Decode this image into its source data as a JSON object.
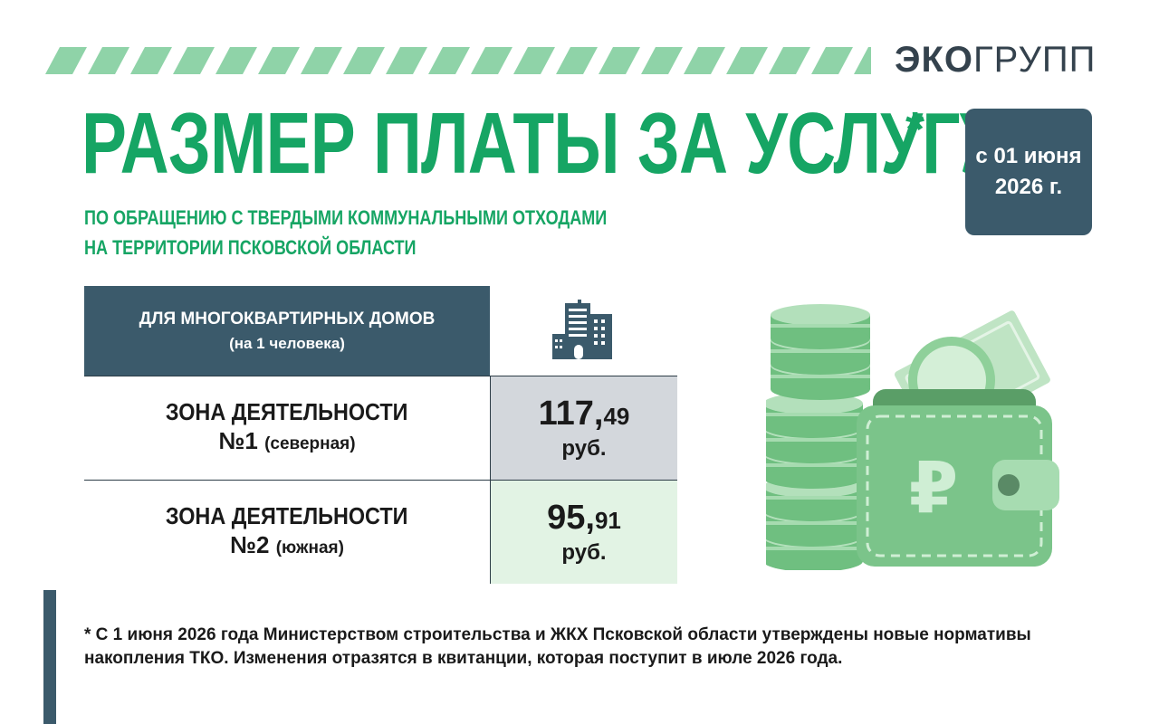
{
  "brand": {
    "logo_prefix": "ЭКО",
    "logo_suffix": "ГРУПП"
  },
  "header": {
    "title": "РАЗМЕР ПЛАТЫ ЗА УСЛУГУ",
    "asterisk": "*",
    "subtitle_line1": "ПО ОБРАЩЕНИЮ С ТВЕРДЫМИ КОММУНАЛЬНЫМИ ОТХОДАМИ",
    "subtitle_line2": "НА ТЕРРИТОРИИ ПСКОВСКОЙ ОБЛАСТИ"
  },
  "date_badge": {
    "line1": "с 01 июня",
    "line2": "2026 г."
  },
  "table": {
    "header_line1": "ДЛЯ МНОГОКВАРТИРНЫХ ДОМОВ",
    "header_line2": "(на 1 человека)",
    "header_icon": "apartment-building-icon",
    "rows": [
      {
        "zone": "ЗОНА ДЕЯТЕЛЬНОСТИ",
        "number": "№1",
        "direction": "(северная)",
        "rub": "117,",
        "kop": "49",
        "currency": "руб."
      },
      {
        "zone": "ЗОНА ДЕЯТЕЛЬНОСТИ",
        "number": "№2",
        "direction": "(южная)",
        "rub": "95,",
        "kop": "91",
        "currency": "руб."
      }
    ]
  },
  "illustration": {
    "icon": "wallet-with-coins-icon",
    "symbol": "₽"
  },
  "footnote": "* С 1 июня 2026 года Министерством строительства и ЖКХ Псковской области утверждены новые нормативы накопления ТКО. Изменения отразятся в квитанции, которая поступит в июле 2026 года.",
  "colors": {
    "green": "#16a564",
    "dark_teal": "#3b5a6b",
    "light_green": "#e2f3e4",
    "light_gray": "#d3d7dc"
  }
}
